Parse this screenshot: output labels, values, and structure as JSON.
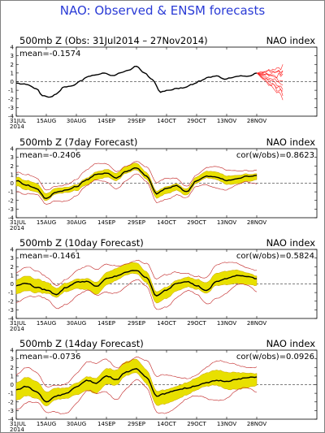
{
  "page_title": "NAO: Observed & ENSM forecasts",
  "colors": {
    "title": "#2a3bd6",
    "observed": "#000000",
    "ensemble_mean": "#000000",
    "ensemble_spread": "#e8e000",
    "spread_border": "#c8a000",
    "member": "#c02020",
    "forecast_members": "#ff2020"
  },
  "x_ticks": [
    "31JUL\n2014",
    "15AUG",
    "30AUG",
    "14SEP",
    "29SEP",
    "14OCT",
    "29OCT",
    "13NOV",
    "28NOV"
  ],
  "x_tick_days": [
    0,
    15,
    30,
    45,
    60,
    75,
    90,
    105,
    120
  ],
  "panels": [
    {
      "title": "500mb Z (Obs: 31Jul2014 – 27Nov2014)",
      "index_label": "NAO index",
      "mean_label": "mean=-0.1574",
      "cor_label": ""
    },
    {
      "title": "500mb Z (7day Forecast)",
      "index_label": "NAO index",
      "mean_label": "mean=-0.2406",
      "cor_label": "cor(w/obs)=0.8623"
    },
    {
      "title": "500mb Z (10day Forecast)",
      "index_label": "NAO index",
      "mean_label": "mean=-0.1461",
      "cor_label": "cor(w/obs)=0.5824"
    },
    {
      "title": "500mb Z (14day Forecast)",
      "index_label": "NAO index",
      "mean_label": "mean=-0.0736",
      "cor_label": "cor(w/obs)=0.0926"
    }
  ],
  "chart_data": [
    {
      "type": "line",
      "title": "500mb Z (Obs: 31Jul2014 – 27Nov2014)",
      "ylim": [
        -4,
        4
      ],
      "xlim_days": [
        0,
        150
      ],
      "x_tick_labels": [
        "31JUL 2014",
        "15AUG",
        "30AUG",
        "14SEP",
        "29SEP",
        "14OCT",
        "29OCT",
        "13NOV",
        "28NOV"
      ],
      "y_ticks": [
        -4,
        -3,
        -2,
        -1,
        0,
        1,
        2,
        3,
        4
      ],
      "observed": {
        "days": [
          0,
          5,
          10,
          13,
          17,
          20,
          24,
          28,
          32,
          36,
          40,
          44,
          48,
          52,
          56,
          60,
          64,
          68,
          72,
          76,
          80,
          84,
          88,
          92,
          96,
          100,
          104,
          108,
          112,
          116,
          120
        ],
        "values": [
          -0.2,
          -0.3,
          -0.8,
          -1.6,
          -1.8,
          -1.4,
          -0.6,
          -0.5,
          0.1,
          0.6,
          0.8,
          1.0,
          0.7,
          1.0,
          1.3,
          1.8,
          1.0,
          0.2,
          -1.2,
          -1.0,
          -0.8,
          -0.7,
          -0.3,
          0.1,
          0.5,
          0.7,
          0.3,
          0.5,
          0.7,
          0.6,
          1.0
        ]
      },
      "forecast_members": {
        "start_day": 120,
        "end_day": 133,
        "range": [
          -1.8,
          1.8
        ]
      }
    },
    {
      "type": "line",
      "title": "500mb Z (7day Forecast)",
      "ylim": [
        -4,
        4
      ],
      "y_ticks": [
        -4,
        -3,
        -2,
        -1,
        0,
        1,
        2,
        3,
        4
      ],
      "ensemble_mean": {
        "days": [
          0,
          5,
          10,
          15,
          20,
          25,
          30,
          35,
          40,
          45,
          50,
          55,
          60,
          65,
          70,
          75,
          80,
          85,
          90,
          95,
          100,
          105,
          110,
          115,
          120
        ],
        "values": [
          0.3,
          -0.2,
          -0.6,
          -1.8,
          -1.0,
          -0.8,
          -0.4,
          0.4,
          1.0,
          1.2,
          0.6,
          1.4,
          1.8,
          0.8,
          -1.2,
          -0.6,
          -0.3,
          -1.0,
          0.3,
          0.8,
          0.7,
          0.3,
          0.5,
          0.8,
          0.9
        ]
      },
      "spread_halfwidth": 0.5,
      "member_halfwidth": 1.1
    },
    {
      "type": "line",
      "title": "500mb Z (10day Forecast)",
      "ylim": [
        -4,
        4
      ],
      "y_ticks": [
        -4,
        -3,
        -2,
        -1,
        0,
        1,
        2,
        3,
        4
      ],
      "ensemble_mean": {
        "days": [
          0,
          5,
          10,
          15,
          20,
          25,
          30,
          35,
          40,
          45,
          50,
          55,
          60,
          65,
          70,
          75,
          80,
          85,
          90,
          95,
          100,
          105,
          110,
          115,
          120
        ],
        "values": [
          -0.2,
          0.1,
          -0.4,
          -0.7,
          -1.2,
          -0.4,
          0.2,
          0.3,
          -0.3,
          0.6,
          0.9,
          1.4,
          1.6,
          0.7,
          -1.4,
          -0.7,
          0.1,
          0.3,
          -0.2,
          -0.8,
          0.3,
          0.6,
          1.0,
          0.9,
          0.6
        ]
      },
      "spread_halfwidth": 0.8,
      "member_halfwidth": 1.7
    },
    {
      "type": "line",
      "title": "500mb Z (14day Forecast)",
      "ylim": [
        -4,
        4
      ],
      "y_ticks": [
        -4,
        -3,
        -2,
        -1,
        0,
        1,
        2,
        3,
        4
      ],
      "ensemble_mean": {
        "days": [
          0,
          5,
          10,
          15,
          20,
          25,
          30,
          35,
          40,
          45,
          50,
          55,
          60,
          65,
          70,
          75,
          80,
          85,
          90,
          95,
          100,
          105,
          110,
          115,
          120
        ],
        "values": [
          -0.6,
          -0.2,
          -0.8,
          -2.0,
          -1.3,
          -1.0,
          -0.3,
          0.5,
          0.2,
          1.0,
          0.6,
          1.5,
          1.8,
          0.9,
          -1.3,
          -1.0,
          -0.6,
          -0.4,
          -0.1,
          0.2,
          0.5,
          0.4,
          0.6,
          0.8,
          0.9
        ]
      },
      "spread_halfwidth": 1.0,
      "member_halfwidth": 2.0
    }
  ]
}
